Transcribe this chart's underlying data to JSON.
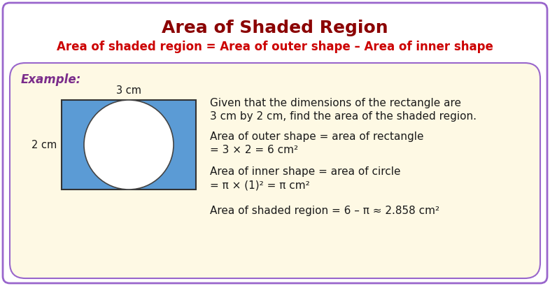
{
  "title": "Area of Shaded Region",
  "title_color": "#8B0000",
  "subtitle": "Area of shaded region = Area of outer shape – Area of inner shape",
  "subtitle_color": "#CC0000",
  "bg_color": "#FFFFFF",
  "box_bg_color": "#FEF9E4",
  "box_border_color": "#9966CC",
  "example_label": "Example:",
  "example_color": "#7B2D8B",
  "dim_label_top": "3 cm",
  "dim_label_left": "2 cm",
  "rect_color": "#5B9BD5",
  "circle_color": "#FFFFFF",
  "circle_edge_color": "#444444",
  "text_color": "#1A1A1A",
  "line1": "Given that the dimensions of the rectangle are",
  "line2": "3 cm by 2 cm, find the area of the shaded region.",
  "line3": "Area of outer shape = area of rectangle",
  "line4": "= 3 × 2 = 6 cm²",
  "line5": "Area of inner shape = area of circle",
  "line6": "= π × (1)² = π cm²",
  "line7": "Area of shaded region = 6 – π ≈ 2.858 cm²",
  "title_fontsize": 18,
  "subtitle_fontsize": 12,
  "text_fontsize": 11,
  "example_fontsize": 12
}
